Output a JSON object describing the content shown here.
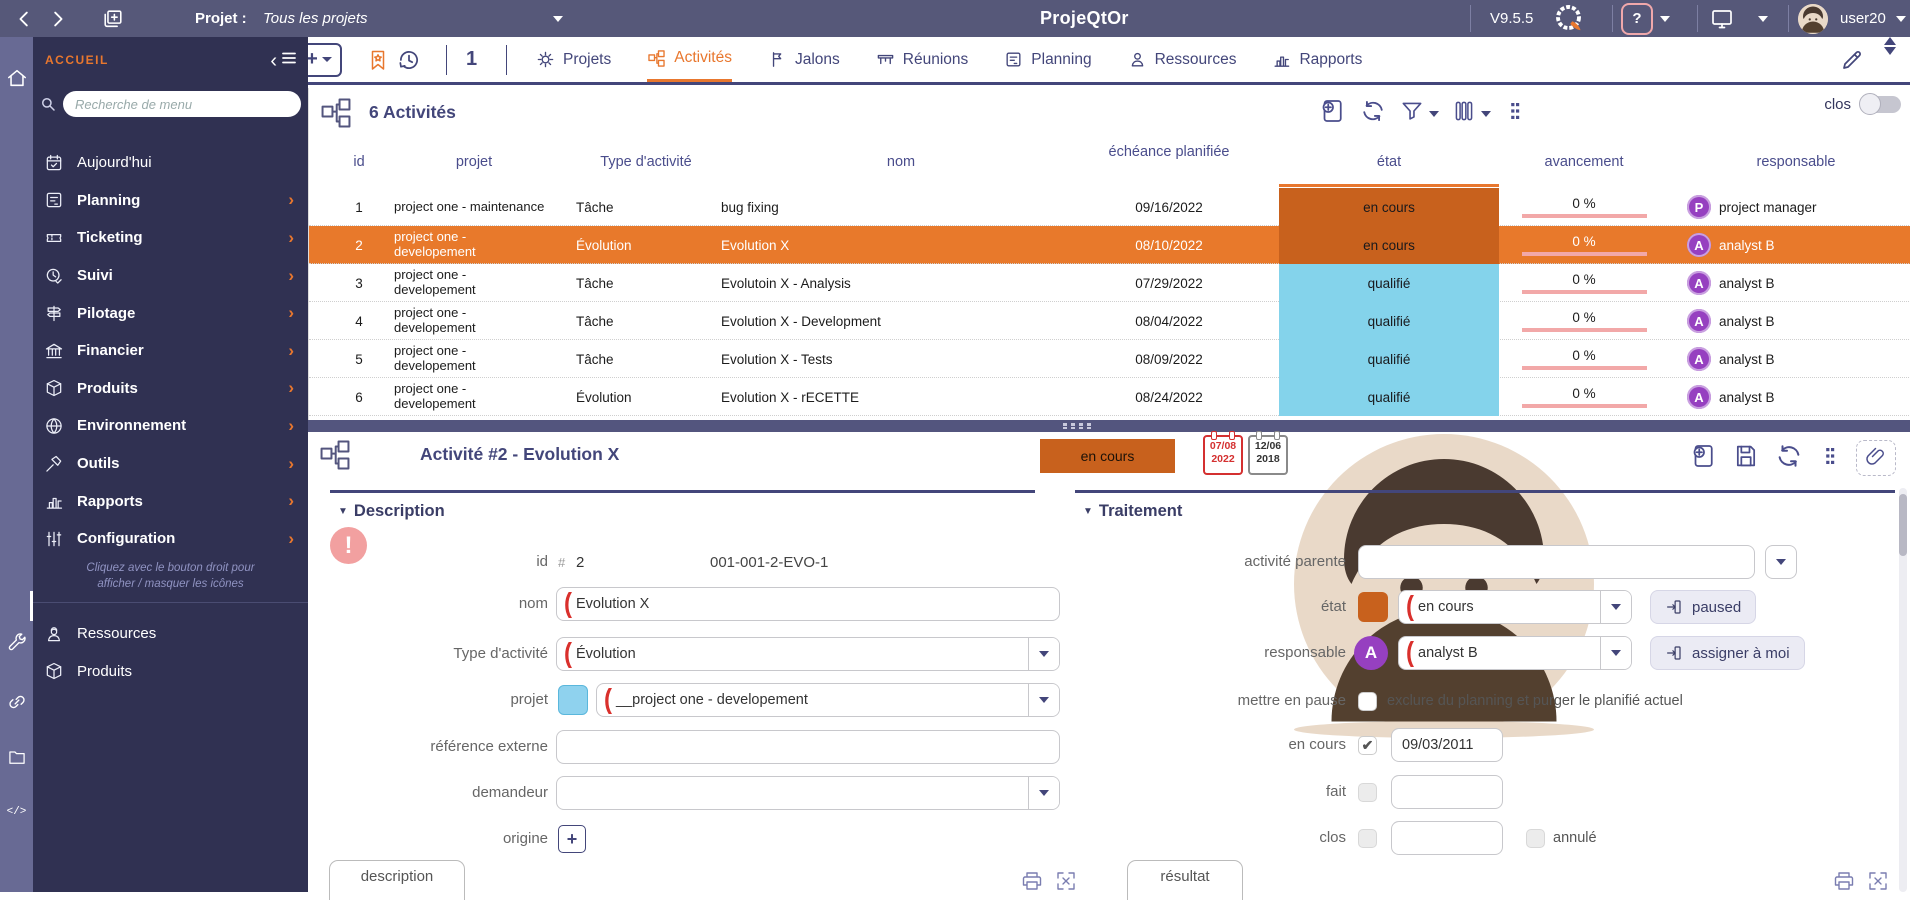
{
  "topbar": {
    "project_label": "Projet :",
    "project_value": "Tous les projets",
    "app_title": "ProjeQtOr",
    "version": "V9.5.5",
    "user": "user20"
  },
  "toolbar": {
    "accueil": "ACCUEIL",
    "window_count": "1",
    "tabs": [
      {
        "label": "Projets",
        "icon": "gear",
        "active": false
      },
      {
        "label": "Activités",
        "icon": "org-chart",
        "active": true
      },
      {
        "label": "Jalons",
        "icon": "flag",
        "active": false
      },
      {
        "label": "Réunions",
        "icon": "meeting-table",
        "active": false
      },
      {
        "label": "Planning",
        "icon": "planning-note",
        "active": false
      },
      {
        "label": "Ressources",
        "icon": "person",
        "active": false
      },
      {
        "label": "Rapports",
        "icon": "bar-chart",
        "active": false
      }
    ]
  },
  "sidebar": {
    "search_placeholder": "Recherche de menu",
    "items": [
      {
        "label": "Aujourd'hui",
        "icon": "calendar-check",
        "bold": false,
        "chevron": false
      },
      {
        "label": "Planning",
        "icon": "planning-note",
        "bold": true,
        "chevron": true
      },
      {
        "label": "Ticketing",
        "icon": "ticket",
        "bold": true,
        "chevron": true
      },
      {
        "label": "Suivi",
        "icon": "clock-check",
        "bold": true,
        "chevron": true
      },
      {
        "label": "Pilotage",
        "icon": "signpost",
        "bold": true,
        "chevron": true
      },
      {
        "label": "Financier",
        "icon": "bank",
        "bold": true,
        "chevron": true
      },
      {
        "label": "Produits",
        "icon": "cube",
        "bold": true,
        "chevron": true
      },
      {
        "label": "Environnement",
        "icon": "globe",
        "bold": true,
        "chevron": true
      },
      {
        "label": "Outils",
        "icon": "hammer",
        "bold": true,
        "chevron": true
      },
      {
        "label": "Rapports",
        "icon": "bar-chart",
        "bold": true,
        "chevron": true
      },
      {
        "label": "Configuration",
        "icon": "sliders",
        "bold": true,
        "chevron": true
      }
    ],
    "hint_line1": "Cliquez avec le bouton droit pour",
    "hint_line2": "afficher / masquer les icônes",
    "footer_items": [
      {
        "label": "Ressources",
        "icon": "person-hat"
      },
      {
        "label": "Produits",
        "icon": "cube"
      }
    ]
  },
  "list": {
    "title": "6 Activités",
    "clos_label": "clos",
    "columns": [
      "id",
      "projet",
      "Type d'activité",
      "nom",
      "échéance planifiée",
      "état",
      "avancement",
      "responsable"
    ],
    "status_colors": {
      "en cours": "#C8611D",
      "qualifié": "#84D3EB"
    },
    "rows": [
      {
        "id": "1",
        "projet": "project one - maintenance",
        "type": "Tâche",
        "nom": "bug fixing",
        "echeance": "09/16/2022",
        "etat": "en cours",
        "etat_color": "#C8611D",
        "avancement": "0 %",
        "resp_initial": "P",
        "resp_name": "project manager",
        "selected": false
      },
      {
        "id": "2",
        "projet": "project one - developement",
        "type": "Évolution",
        "nom": "Evolution X",
        "echeance": "08/10/2022",
        "etat": "en cours",
        "etat_color": "#C8611D",
        "avancement": "0 %",
        "resp_initial": "A",
        "resp_name": "analyst B",
        "selected": true
      },
      {
        "id": "3",
        "projet": "project one - developement",
        "type": "Tâche",
        "nom": "Evolutoin X - Analysis",
        "echeance": "07/29/2022",
        "etat": "qualifié",
        "etat_color": "#84D3EB",
        "avancement": "0 %",
        "resp_initial": "A",
        "resp_name": "analyst B",
        "selected": false
      },
      {
        "id": "4",
        "projet": "project one - developement",
        "type": "Tâche",
        "nom": "Evolution X - Development",
        "echeance": "08/04/2022",
        "etat": "qualifié",
        "etat_color": "#84D3EB",
        "avancement": "0 %",
        "resp_initial": "A",
        "resp_name": "analyst B",
        "selected": false
      },
      {
        "id": "5",
        "projet": "project one - developement",
        "type": "Tâche",
        "nom": "Evolution X - Tests",
        "echeance": "08/09/2022",
        "etat": "qualifié",
        "etat_color": "#84D3EB",
        "avancement": "0 %",
        "resp_initial": "A",
        "resp_name": "analyst B",
        "selected": false
      },
      {
        "id": "6",
        "projet": "project one - developement",
        "type": "Évolution",
        "nom": "Evolution X - rECETTE",
        "echeance": "08/24/2022",
        "etat": "qualifié",
        "etat_color": "#84D3EB",
        "avancement": "0 %",
        "resp_initial": "A",
        "resp_name": "analyst B",
        "selected": false
      }
    ]
  },
  "detail": {
    "title": "Activité  #2  - Evolution X",
    "status_badge": "en cours",
    "planned_date": {
      "line1": "07/08",
      "line2": "2022"
    },
    "real_date": {
      "line1": "12/06",
      "line2": "2018"
    },
    "description": {
      "section_title": "Description",
      "id_label": "id",
      "id_symbol": "#",
      "id_value": "2",
      "reference_code": "001-001-2-EVO-1",
      "fields": [
        {
          "label": "nom",
          "type": "input",
          "required": true,
          "value": "Evolution X"
        },
        {
          "label": "Type d'activité",
          "type": "select",
          "required": true,
          "value": "Évolution"
        },
        {
          "label": "projet",
          "type": "select",
          "required": true,
          "value": "__project one - developement",
          "swatch": "#8FD2EE",
          "swatch_border": "#5AB7DC"
        },
        {
          "label": "référence externe",
          "type": "input",
          "required": false,
          "value": ""
        },
        {
          "label": "demandeur",
          "type": "select",
          "required": false,
          "value": ""
        },
        {
          "label": "origine",
          "type": "plus",
          "required": false,
          "value": ""
        }
      ],
      "tab_label": "description"
    },
    "traitement": {
      "section_title": "Traitement",
      "rows": [
        {
          "label": "activité parente",
          "type": "select-detached",
          "value": ""
        },
        {
          "label": "état",
          "type": "select",
          "required": true,
          "value": "en cours",
          "swatch": "#C8611D",
          "button": "paused"
        },
        {
          "label": "responsable",
          "type": "select",
          "required": true,
          "value": "analyst B",
          "avatar": "A",
          "button": "assigner à moi"
        },
        {
          "label": "mettre en pause",
          "type": "checkbox-text",
          "checked": false,
          "text": "exclure du planning et purger le planifié actuel"
        },
        {
          "label": "en cours",
          "type": "checkbox-date",
          "checked": true,
          "value": "09/03/2011"
        },
        {
          "label": "fait",
          "type": "checkbox-date",
          "checked": false,
          "value": ""
        },
        {
          "label": "clos",
          "type": "checkbox-date",
          "checked": false,
          "value": "",
          "extra_checkbox": "annulé"
        }
      ],
      "tab_label": "résultat"
    }
  }
}
